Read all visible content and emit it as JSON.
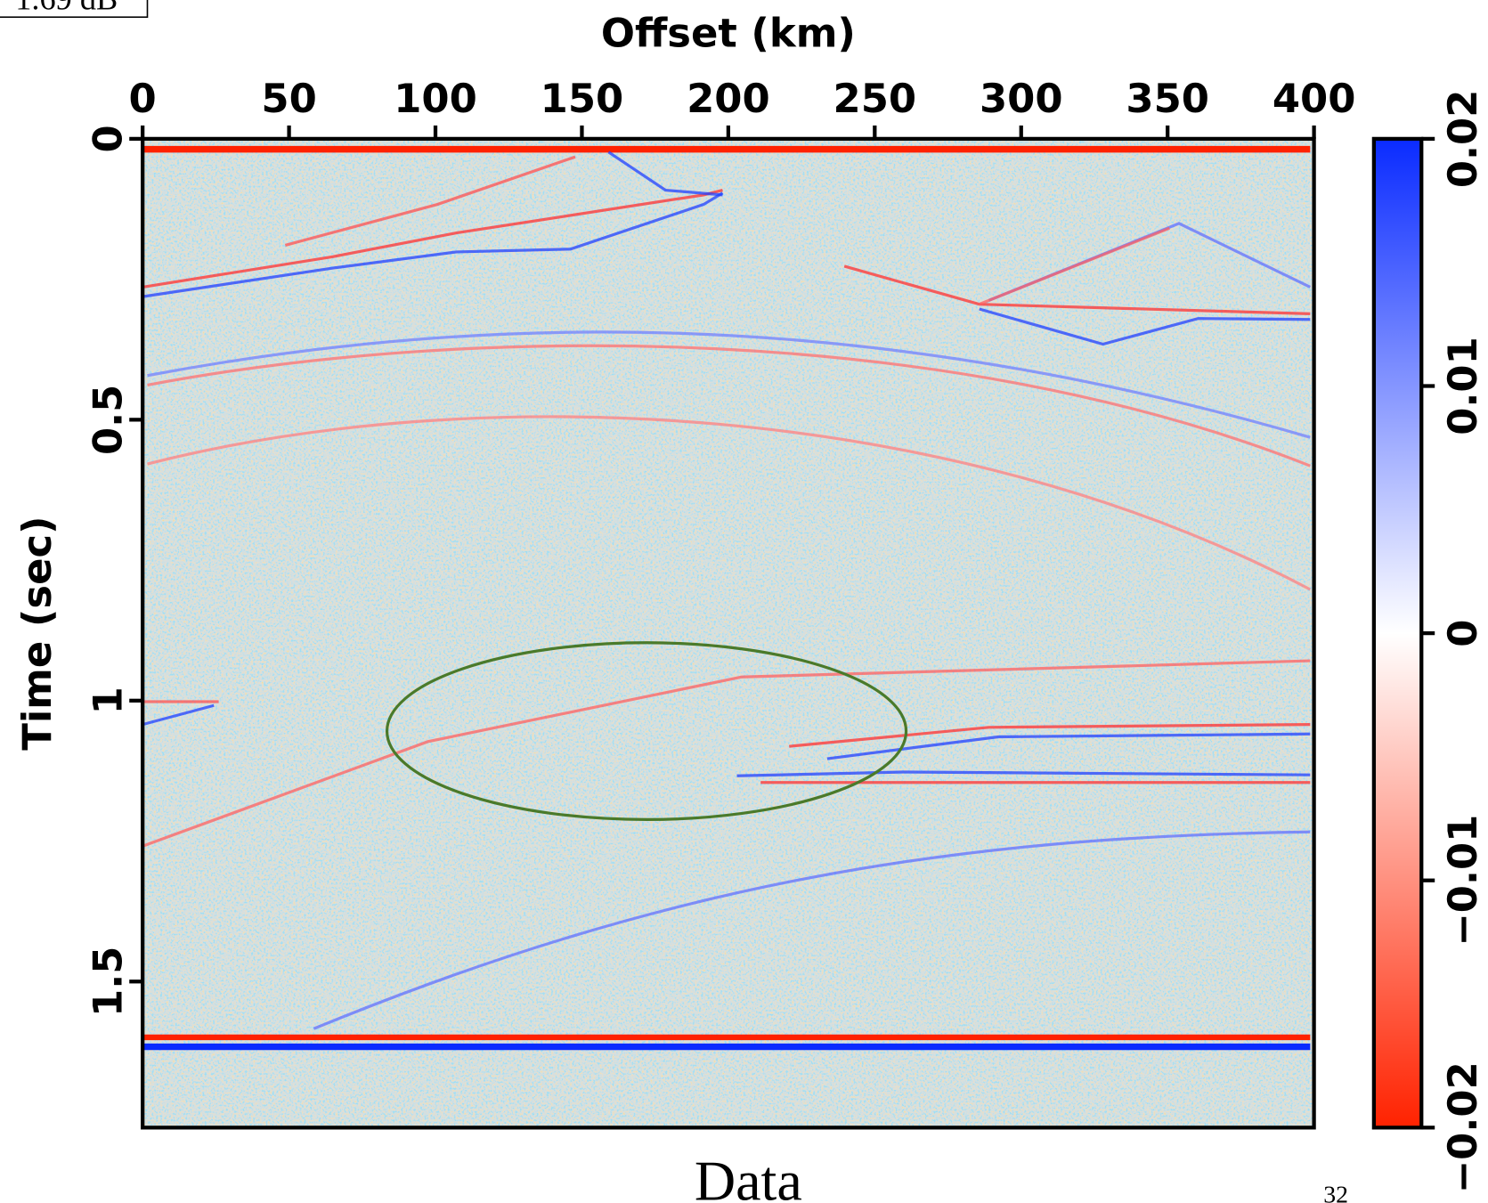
{
  "chart_data": {
    "type": "image",
    "title": "Data",
    "annotation": "1.69 dB",
    "page_number": "32",
    "x_label": "Offset (km)",
    "y_label": "Time (sec)",
    "xlim": [
      0,
      400
    ],
    "xticks": [
      0,
      50,
      100,
      150,
      200,
      250,
      300,
      350,
      400
    ],
    "ylim": [
      0,
      1.76
    ],
    "yticks": [
      0,
      0.5,
      1,
      1.5
    ],
    "y_reversed": true,
    "colorbar": {
      "lim": [
        -0.02,
        0.02
      ],
      "ticks": [
        {
          "value": -0.02,
          "label": "−0.02"
        },
        {
          "value": -0.01,
          "label": "−0.01"
        },
        0,
        0.01,
        0.02
      ],
      "colors": [
        "#ff2200",
        "#ffffff",
        "#0a2bff"
      ]
    }
  }
}
